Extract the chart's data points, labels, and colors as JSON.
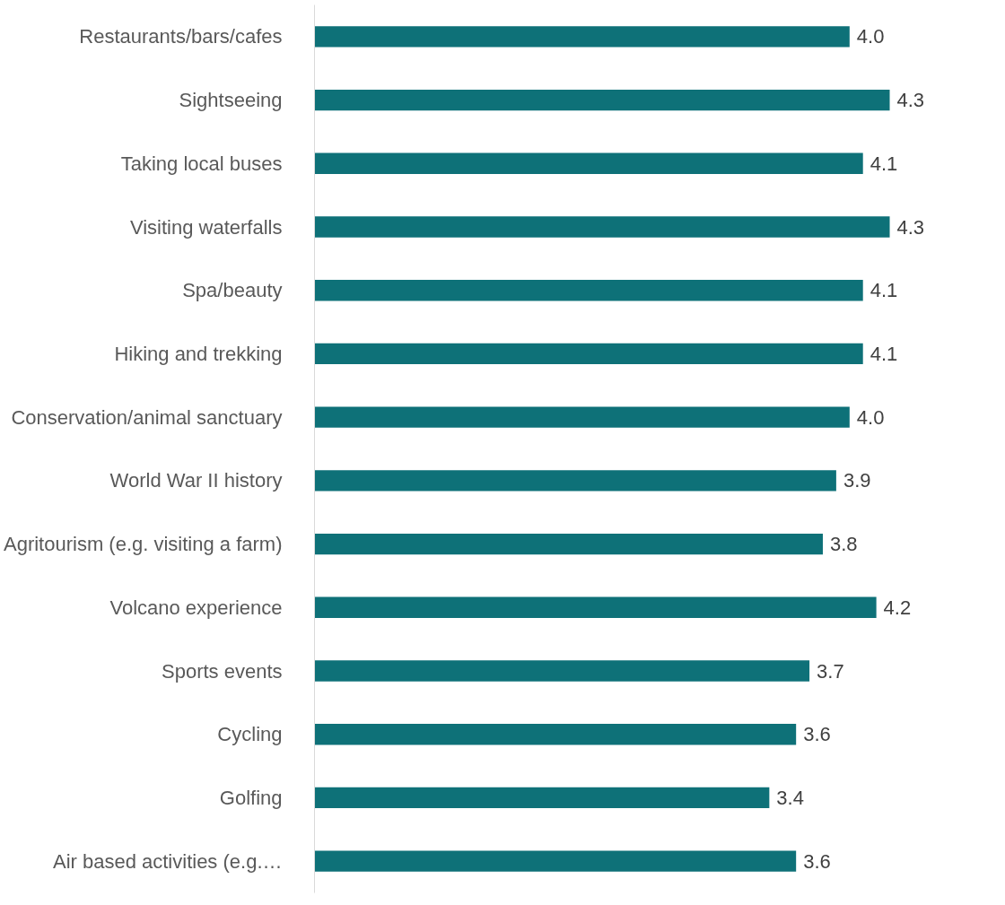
{
  "chart_data": {
    "type": "bar",
    "orientation": "horizontal",
    "categories": [
      "Restaurants/bars/cafes",
      "Sightseeing",
      "Taking local buses",
      "Visiting waterfalls",
      "Spa/beauty",
      "Hiking and trekking",
      "Conservation/animal sanctuary",
      "World War II history",
      "Agritourism (e.g. visiting a farm)",
      "Volcano experience",
      "Sports events",
      "Cycling",
      "Golfing",
      "Air based activities (e.g.…"
    ],
    "values": [
      4.0,
      4.3,
      4.1,
      4.3,
      4.1,
      4.1,
      4.0,
      3.9,
      3.8,
      4.2,
      3.7,
      3.6,
      3.4,
      3.6
    ],
    "value_labels": [
      "4.0",
      "4.3",
      "4.1",
      "4.3",
      "4.1",
      "4.1",
      "4.0",
      "3.9",
      "3.8",
      "4.2",
      "3.7",
      "3.6",
      "3.4",
      "3.6"
    ],
    "color": "#0e7178",
    "grid": false
  }
}
